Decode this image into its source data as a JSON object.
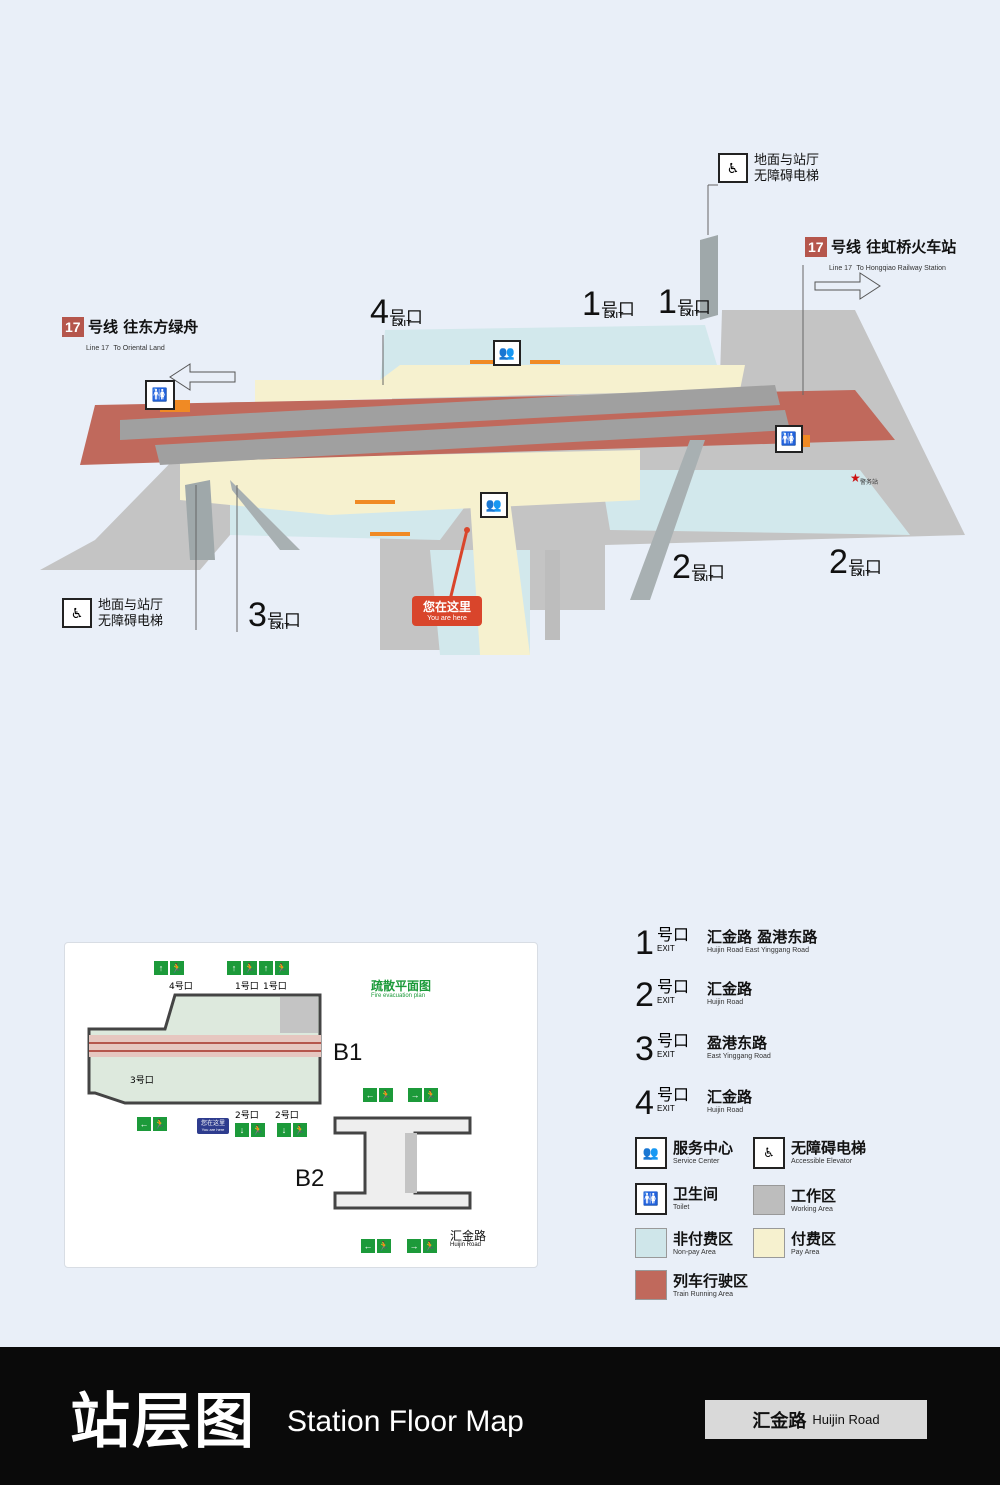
{
  "map": {
    "exits": [
      {
        "num": "4",
        "hao": "号口",
        "en": "EXIT"
      },
      {
        "num": "1",
        "hao": "号口",
        "en": "EXIT"
      },
      {
        "num": "1",
        "hao": "号口",
        "en": "EXIT"
      },
      {
        "num": "2",
        "hao": "号口",
        "en": "EXIT"
      },
      {
        "num": "2",
        "hao": "号口",
        "en": "EXIT"
      },
      {
        "num": "3",
        "hao": "号口",
        "en": "EXIT"
      }
    ],
    "elevator_top": {
      "line1": "地面与站厅",
      "line2": "无障碍电梯"
    },
    "elevator_left": {
      "line1": "地面与站厅",
      "line2": "无障碍电梯"
    },
    "line_right": {
      "badge": "17",
      "cn": "号线 往虹桥火车站",
      "en_line": "Line 17",
      "en_dest": "To Hongqiao Railway Station"
    },
    "line_left": {
      "badge": "17",
      "cn": "号线 往东方绿舟",
      "en_line": "Line 17",
      "en_dest": "To Oriental Land"
    },
    "you_are_here": {
      "cn": "您在这里",
      "en": "You are here"
    },
    "police_label": "警务站"
  },
  "evac": {
    "title_cn": "疏散平面图",
    "title_en": "Fire evacuation plan",
    "b1": "B1",
    "b2": "B2",
    "road_cn": "汇金路",
    "road_en": "Huijin Road",
    "exit4": "4号口",
    "exit1a": "1号口",
    "exit1b": "1号口",
    "exit3": "3号口",
    "exit2a": "2号口",
    "exit2b": "2号口",
    "you_are_here_cn": "您在这里",
    "you_are_here_en": "You are here"
  },
  "legend": {
    "exits": [
      {
        "num": "1",
        "hao": "号口",
        "exit": "EXIT",
        "cn": "汇金路  盈港东路",
        "en": "Huijin Road      East Yinggang Road"
      },
      {
        "num": "2",
        "hao": "号口",
        "exit": "EXIT",
        "cn": "汇金路",
        "en": "Huijin Road"
      },
      {
        "num": "3",
        "hao": "号口",
        "exit": "EXIT",
        "cn": "盈港东路",
        "en": "East Yinggang Road"
      },
      {
        "num": "4",
        "hao": "号口",
        "exit": "EXIT",
        "cn": "汇金路",
        "en": "Huijin Road"
      }
    ],
    "service_cn": "服务中心",
    "service_en": "Service Center",
    "elevator_cn": "无障碍电梯",
    "elevator_en": "Accessible Elevator",
    "toilet_cn": "卫生间",
    "toilet_en": "Toilet",
    "working_cn": "工作区",
    "working_en": "Working Area",
    "nonpay_cn": "非付费区",
    "nonpay_en": "Non-pay Area",
    "pay_cn": "付费区",
    "pay_en": "Pay Area",
    "train_cn": "列车行驶区",
    "train_en": "Train Running Area"
  },
  "colors": {
    "working": "#bdbdbd",
    "nonpay": "#cfe6ea",
    "pay": "#f6f1cf",
    "train": "#c0695c",
    "badge": "#b5564c",
    "you_here": "#d9452b",
    "green": "#1c9a3a"
  },
  "footer": {
    "title_cn": "站层图",
    "title_en": "Station Floor Map",
    "station_cn": "汇金路",
    "station_en": "Huijin Road"
  }
}
